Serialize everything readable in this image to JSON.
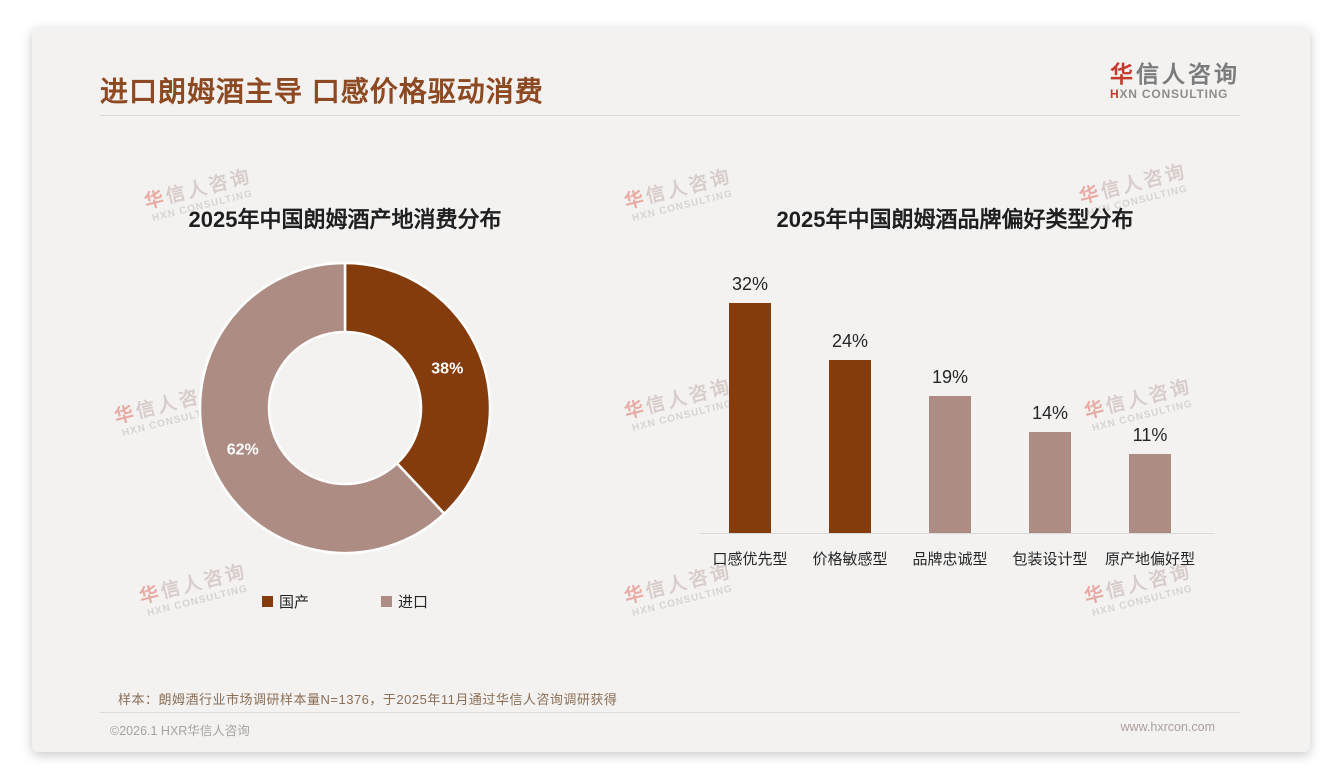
{
  "header": {
    "title": "进口朗姆酒主导 口感价格驱动消费",
    "logo": {
      "cn_accent": "华",
      "cn_rest": "信人咨询",
      "en_accent": "H",
      "en_rest": "XN CONSULTING"
    }
  },
  "watermark": {
    "line1_accent": "华",
    "line1_rest": "信人咨询",
    "line2": "HXN CONSULTING"
  },
  "colors": {
    "primary_brown": "#843C0C",
    "secondary_mauve": "#AD8C84",
    "title_brown": "#8D4A22",
    "card_background": "#F3F2F1",
    "axis_gray": "#D9D9D9"
  },
  "chart_data": [
    {
      "type": "pie",
      "subtype": "donut",
      "title": "2025年中国朗姆酒产地消费分布",
      "series": [
        {
          "name": "国产",
          "value": 38,
          "label": "38%",
          "color": "#843C0C"
        },
        {
          "name": "进口",
          "value": 62,
          "label": "62%",
          "color": "#AD8C84"
        }
      ],
      "start_angle_deg": 0,
      "direction": "clockwise",
      "label_color": "#FFFFFF",
      "legend_position": "bottom"
    },
    {
      "type": "bar",
      "title": "2025年中国朗姆酒品牌偏好类型分布",
      "categories": [
        "口感优先型",
        "价格敏感型",
        "品牌忠诚型",
        "包装设计型",
        "原产地偏好型"
      ],
      "values": [
        32,
        24,
        19,
        14,
        11
      ],
      "data_labels": [
        "32%",
        "24%",
        "19%",
        "14%",
        "11%"
      ],
      "bar_colors": [
        "#843C0C",
        "#843C0C",
        "#AD8C84",
        "#AD8C84",
        "#AD8C84"
      ],
      "ylim": [
        0,
        35
      ],
      "grid": false,
      "legend_position": "none"
    }
  ],
  "footnote": {
    "sample": "样本：朗姆酒行业市场调研样本量N=1376，于2025年11月通过华信人咨询调研获得"
  },
  "footer": {
    "copyright": "©2026.1 HXR华信人咨询",
    "website": "www.hxrcon.com"
  }
}
